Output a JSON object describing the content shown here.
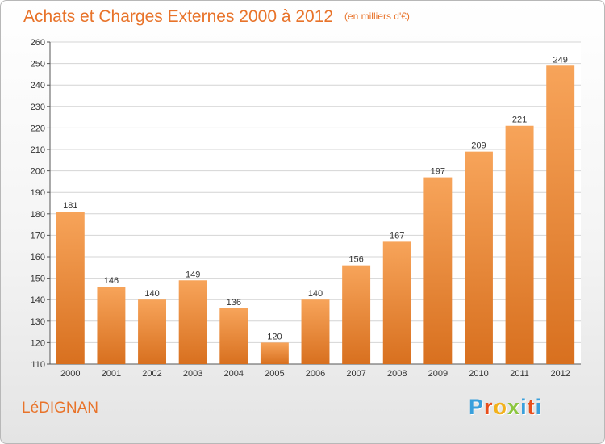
{
  "header": {
    "title": "Achats et Charges Externes 2000 à 2012",
    "subtitle": "(en milliers d'€)"
  },
  "footer": {
    "commune": "LéDIGNAN",
    "logo_letters": [
      "P",
      "r",
      "o",
      "x",
      "i",
      "t",
      "i"
    ]
  },
  "colors": {
    "accent": "#e8732a",
    "bar_top": "#f7a45a",
    "bar_bottom": "#d8701f",
    "grid": "#d4d4d4"
  },
  "chart_data": {
    "type": "bar",
    "title": "Achats et Charges Externes 2000 à 2012",
    "subtitle": "(en milliers d'€)",
    "categories": [
      "2000",
      "2001",
      "2002",
      "2003",
      "2004",
      "2005",
      "2006",
      "2007",
      "2008",
      "2009",
      "2010",
      "2011",
      "2012"
    ],
    "values": [
      181,
      146,
      140,
      149,
      136,
      120,
      140,
      156,
      167,
      197,
      209,
      221,
      249
    ],
    "ylim": [
      110,
      260
    ],
    "yticks": [
      110,
      120,
      130,
      140,
      150,
      160,
      170,
      180,
      190,
      200,
      210,
      220,
      230,
      240,
      250,
      260
    ],
    "grid": true,
    "data_labels": true
  }
}
